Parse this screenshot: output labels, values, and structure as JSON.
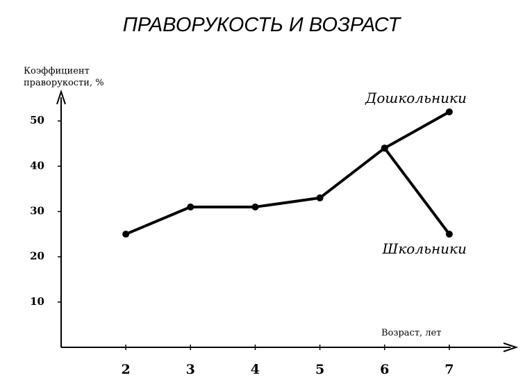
{
  "chart_data": {
    "type": "line",
    "title": "ПРАВОРУКОСТЬ И ВОЗРАСТ",
    "y_label": "Коэффициент праворукости, %",
    "x_label": "Возраст, лет",
    "x": [
      2,
      3,
      4,
      5,
      6,
      7
    ],
    "series": [
      {
        "name": "Дошкольники",
        "color": "#000000",
        "values": [
          25,
          31,
          31,
          33,
          44,
          52
        ]
      },
      {
        "name": "Школьники",
        "color": "#000000",
        "values": [
          null,
          null,
          null,
          null,
          44,
          25
        ]
      }
    ],
    "xlim": [
      1,
      8
    ],
    "xticks": [
      2,
      3,
      4,
      5,
      6,
      7
    ],
    "ylim": [
      0,
      56
    ],
    "yticks": [
      10,
      20,
      30,
      40,
      50
    ],
    "grid": false
  }
}
